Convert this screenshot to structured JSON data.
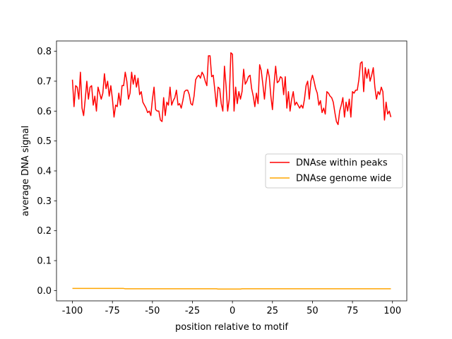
{
  "chart_data": {
    "type": "line",
    "xlabel": "position relative to motif",
    "ylabel": "average DNA signal",
    "x": [
      -100,
      -99,
      -98,
      -97,
      -96,
      -95,
      -94,
      -93,
      -92,
      -91,
      -90,
      -89,
      -88,
      -87,
      -86,
      -85,
      -84,
      -83,
      -82,
      -81,
      -80,
      -79,
      -78,
      -77,
      -76,
      -75,
      -74,
      -73,
      -72,
      -71,
      -70,
      -69,
      -68,
      -67,
      -66,
      -65,
      -64,
      -63,
      -62,
      -61,
      -60,
      -59,
      -58,
      -57,
      -56,
      -55,
      -54,
      -53,
      -52,
      -51,
      -50,
      -49,
      -48,
      -47,
      -46,
      -45,
      -44,
      -43,
      -42,
      -41,
      -40,
      -39,
      -38,
      -37,
      -36,
      -35,
      -34,
      -33,
      -32,
      -31,
      -30,
      -29,
      -28,
      -27,
      -26,
      -25,
      -24,
      -23,
      -22,
      -21,
      -20,
      -19,
      -18,
      -17,
      -16,
      -15,
      -14,
      -13,
      -12,
      -11,
      -10,
      -9,
      -8,
      -7,
      -6,
      -5,
      -4,
      -3,
      -2,
      -1,
      0,
      1,
      2,
      3,
      4,
      5,
      6,
      7,
      8,
      9,
      10,
      11,
      12,
      13,
      14,
      15,
      16,
      17,
      18,
      19,
      20,
      21,
      22,
      23,
      24,
      25,
      26,
      27,
      28,
      29,
      30,
      31,
      32,
      33,
      34,
      35,
      36,
      37,
      38,
      39,
      40,
      41,
      42,
      43,
      44,
      45,
      46,
      47,
      48,
      49,
      50,
      51,
      52,
      53,
      54,
      55,
      56,
      57,
      58,
      59,
      60,
      61,
      62,
      63,
      64,
      65,
      66,
      67,
      68,
      69,
      70,
      71,
      72,
      73,
      74,
      75,
      76,
      77,
      78,
      79,
      80,
      81,
      82,
      83,
      84,
      85,
      86,
      87,
      88,
      89,
      90,
      91,
      92,
      93,
      94,
      95,
      96,
      97,
      98,
      99
    ],
    "series": [
      {
        "name": "DNAse within peaks",
        "color": "#ff0000",
        "values": [
          0.705,
          0.615,
          0.685,
          0.68,
          0.64,
          0.73,
          0.61,
          0.585,
          0.64,
          0.7,
          0.64,
          0.68,
          0.685,
          0.62,
          0.65,
          0.6,
          0.68,
          0.66,
          0.64,
          0.66,
          0.725,
          0.675,
          0.7,
          0.65,
          0.685,
          0.64,
          0.58,
          0.62,
          0.615,
          0.66,
          0.62,
          0.685,
          0.685,
          0.73,
          0.7,
          0.64,
          0.66,
          0.73,
          0.69,
          0.72,
          0.68,
          0.71,
          0.655,
          0.665,
          0.63,
          0.62,
          0.61,
          0.595,
          0.6,
          0.585,
          0.64,
          0.68,
          0.605,
          0.6,
          0.6,
          0.57,
          0.565,
          0.645,
          0.585,
          0.63,
          0.62,
          0.68,
          0.62,
          0.635,
          0.645,
          0.67,
          0.62,
          0.625,
          0.61,
          0.635,
          0.665,
          0.67,
          0.67,
          0.655,
          0.625,
          0.62,
          0.65,
          0.705,
          0.715,
          0.72,
          0.71,
          0.73,
          0.72,
          0.7,
          0.685,
          0.785,
          0.785,
          0.715,
          0.72,
          0.67,
          0.615,
          0.68,
          0.675,
          0.625,
          0.6,
          0.75,
          0.685,
          0.6,
          0.64,
          0.795,
          0.79,
          0.6,
          0.68,
          0.625,
          0.665,
          0.64,
          0.665,
          0.74,
          0.69,
          0.7,
          0.715,
          0.72,
          0.675,
          0.65,
          0.615,
          0.66,
          0.625,
          0.755,
          0.735,
          0.69,
          0.64,
          0.7,
          0.74,
          0.715,
          0.65,
          0.605,
          0.69,
          0.75,
          0.695,
          0.7,
          0.715,
          0.71,
          0.655,
          0.715,
          0.61,
          0.665,
          0.6,
          0.64,
          0.665,
          0.62,
          0.63,
          0.62,
          0.61,
          0.62,
          0.61,
          0.64,
          0.685,
          0.7,
          0.64,
          0.7,
          0.72,
          0.7,
          0.675,
          0.66,
          0.62,
          0.635,
          0.595,
          0.61,
          0.59,
          0.665,
          0.66,
          0.65,
          0.645,
          0.63,
          0.595,
          0.565,
          0.555,
          0.6,
          0.62,
          0.645,
          0.58,
          0.63,
          0.6,
          0.64,
          0.58,
          0.665,
          0.66,
          0.67,
          0.67,
          0.705,
          0.76,
          0.765,
          0.665,
          0.745,
          0.71,
          0.74,
          0.7,
          0.72,
          0.745,
          0.68,
          0.64,
          0.665,
          0.655,
          0.68,
          0.665,
          0.57,
          0.63,
          0.59,
          0.6,
          0.58
        ]
      },
      {
        "name": "DNAse genome wide",
        "color": "#ffa500",
        "values": [
          0.007,
          0.007,
          0.007,
          0.007,
          0.007,
          0.007,
          0.007,
          0.007,
          0.007,
          0.007,
          0.007,
          0.007,
          0.007,
          0.007,
          0.007,
          0.007,
          0.007,
          0.007,
          0.007,
          0.007,
          0.007,
          0.007,
          0.007,
          0.007,
          0.007,
          0.007,
          0.007,
          0.007,
          0.007,
          0.007,
          0.007,
          0.007,
          0.007,
          0.006,
          0.006,
          0.006,
          0.006,
          0.006,
          0.006,
          0.006,
          0.006,
          0.006,
          0.006,
          0.006,
          0.006,
          0.006,
          0.006,
          0.006,
          0.006,
          0.006,
          0.006,
          0.006,
          0.006,
          0.006,
          0.006,
          0.006,
          0.006,
          0.006,
          0.006,
          0.006,
          0.006,
          0.006,
          0.006,
          0.006,
          0.006,
          0.006,
          0.006,
          0.006,
          0.006,
          0.006,
          0.006,
          0.006,
          0.006,
          0.006,
          0.006,
          0.006,
          0.006,
          0.006,
          0.006,
          0.006,
          0.006,
          0.006,
          0.006,
          0.006,
          0.006,
          0.006,
          0.006,
          0.006,
          0.006,
          0.006,
          0.006,
          0.005,
          0.005,
          0.005,
          0.005,
          0.005,
          0.005,
          0.005,
          0.005,
          0.005,
          0.005,
          0.005,
          0.005,
          0.005,
          0.005,
          0.005,
          0.006,
          0.006,
          0.006,
          0.006,
          0.006,
          0.006,
          0.006,
          0.006,
          0.006,
          0.006,
          0.006,
          0.006,
          0.006,
          0.006,
          0.006,
          0.006,
          0.006,
          0.006,
          0.006,
          0.006,
          0.006,
          0.006,
          0.006,
          0.006,
          0.006,
          0.006,
          0.006,
          0.006,
          0.006,
          0.006,
          0.006,
          0.006,
          0.006,
          0.006,
          0.006,
          0.006,
          0.006,
          0.006,
          0.006,
          0.006,
          0.006,
          0.006,
          0.006,
          0.006,
          0.006,
          0.006,
          0.006,
          0.006,
          0.006,
          0.006,
          0.006,
          0.006,
          0.006,
          0.006,
          0.006,
          0.006,
          0.006,
          0.006,
          0.006,
          0.006,
          0.006,
          0.006,
          0.006,
          0.006,
          0.006,
          0.006,
          0.006,
          0.006,
          0.006,
          0.006,
          0.006,
          0.006,
          0.006,
          0.006,
          0.006,
          0.006,
          0.006,
          0.006,
          0.006,
          0.006,
          0.006,
          0.006,
          0.006,
          0.006,
          0.006,
          0.006,
          0.006,
          0.006,
          0.006,
          0.006,
          0.006,
          0.006,
          0.006,
          0.006
        ]
      }
    ],
    "xlim": [
      -109.95,
      108.95
    ],
    "xticks": [
      -100,
      -75,
      -50,
      -25,
      0,
      25,
      50,
      75,
      100
    ],
    "ylim": [
      -0.0345,
      0.8345
    ],
    "yticks": [
      {
        "value": 0,
        "label": "0.0"
      },
      0.1,
      0.2,
      0.3,
      0.4,
      0.5,
      0.6,
      0.7,
      0.8
    ],
    "legend": "center right"
  }
}
